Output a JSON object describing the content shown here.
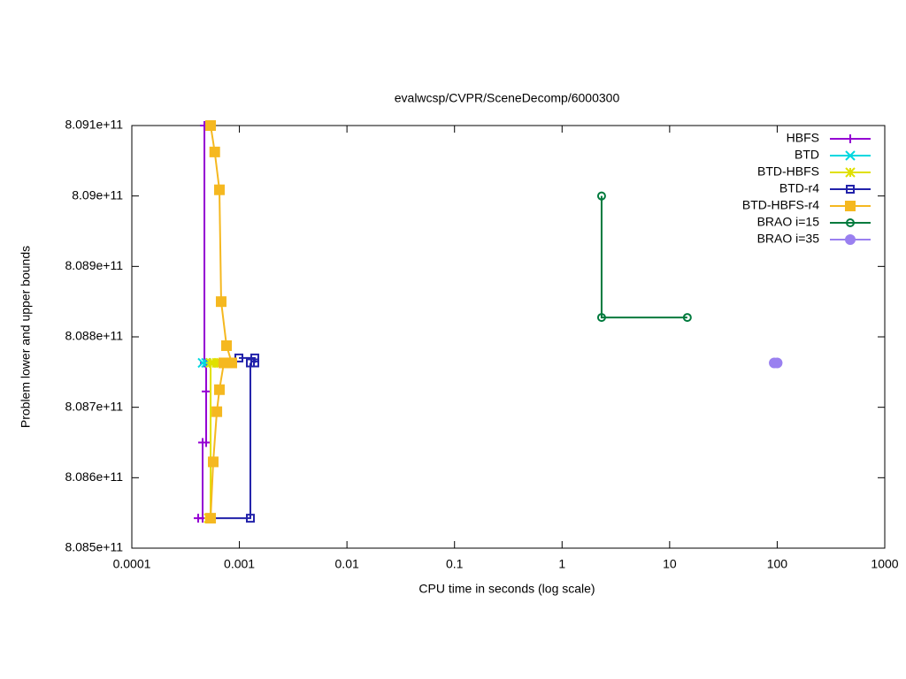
{
  "chart_data": {
    "type": "line",
    "title": "evalwcsp/CVPR/SceneDecomp/6000300",
    "x_label": "CPU time in seconds (log scale)",
    "y_label": "Problem lower and upper bounds",
    "xlog": true,
    "xlim": [
      0.0001,
      1000
    ],
    "xticks": [
      0.0001,
      0.001,
      0.01,
      0.1,
      1,
      10,
      100,
      1000
    ],
    "ylim": [
      808500000000,
      809100000000
    ],
    "yticks": [
      {
        "value": 808500000000,
        "label": "8.085e+11"
      },
      {
        "value": 808600000000,
        "label": "8.086e+11"
      },
      {
        "value": 808700000000,
        "label": "8.087e+11"
      },
      {
        "value": 808800000000,
        "label": "8.088e+11"
      },
      {
        "value": 808900000000,
        "label": "8.089e+11"
      },
      {
        "value": 809000000000,
        "label": "8.09e+11"
      },
      {
        "value": 809100000000,
        "label": "8.091e+11"
      }
    ],
    "legend": "top-right",
    "series": [
      {
        "name": "HBFS",
        "color": "#9400d3",
        "marker": "plus",
        "x": [
          0.000473,
          0.000473,
          null,
          0.000414,
          0.000455,
          0.000455,
          0.000491,
          0.000491,
          0.000491
        ],
        "values": [
          809100000000,
          808763000000,
          null,
          808542500000,
          808542500000,
          808650000000,
          808650000000,
          808722500000,
          808763000000
        ]
      },
      {
        "name": "BTD",
        "color": "#00d8e0",
        "marker": "cross",
        "x": [
          0.000455,
          0.000491
        ],
        "values": [
          808763000000,
          808763000000
        ]
      },
      {
        "name": "BTD-HBFS",
        "color": "#e0e000",
        "marker": "star",
        "x": [
          0.000519,
          0.00054,
          0.00054,
          0.000571,
          0.000617,
          0.000652,
          0.000677
        ],
        "values": [
          808542500000,
          808542500000,
          808763000000,
          808763000000,
          808763000000,
          808763000000,
          808763000000
        ]
      },
      {
        "name": "BTD-r4",
        "color": "#2222aa",
        "marker": "square-open",
        "x": [
          0.00054,
          0.001265,
          0.001265,
          null,
          0.000989,
          0.00139,
          0.00139
        ],
        "values": [
          808542500000,
          808542500000,
          808763000000,
          null,
          808770000000,
          808770000000,
          808763000000
        ]
      },
      {
        "name": "BTD-HBFS-r4",
        "color": "#f5b820",
        "marker": "square",
        "x": [
          0.00054,
          0.00059,
          0.000652,
          0.000677,
          0.000759,
          0.00085,
          null,
          0.00054,
          0.000571,
          0.000617,
          0.000652,
          0.000717
        ],
        "values": [
          809100000000,
          809062500000,
          809008750000,
          808850000000,
          808787500000,
          808763000000,
          null,
          808542500000,
          808622500000,
          808693750000,
          808725000000,
          808763000000
        ]
      },
      {
        "name": "BRAO i=15",
        "color": "#007a3d",
        "marker": "circle-open",
        "x": [
          2.33,
          2.33,
          14.6
        ],
        "values": [
          809000000000,
          808827500000,
          808827500000
        ]
      },
      {
        "name": "BRAO i=35",
        "color": "#9a80f0",
        "marker": "circle",
        "x": [
          93.8,
          100
        ],
        "values": [
          808763000000,
          808763000000
        ]
      }
    ]
  }
}
